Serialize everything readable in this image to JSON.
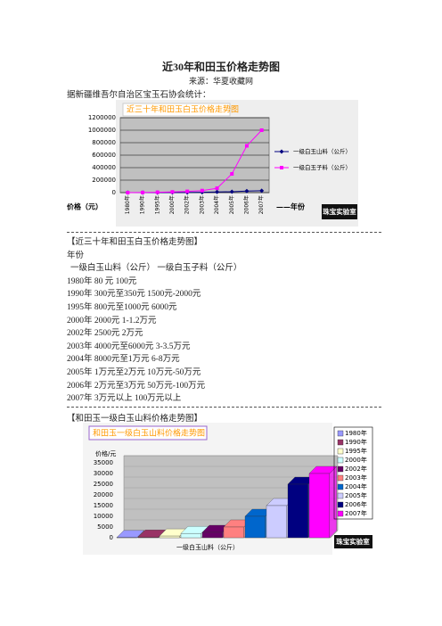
{
  "header": {
    "title": "近30年和田玉价格走势图",
    "source": "来源：华夏收藏网",
    "intro": "据新疆维吾尔自治区宝玉石协会统计："
  },
  "chart_data": [
    {
      "type": "line",
      "title": "近三十年和田玉白玉价格走势图",
      "y_label": "价格（元）",
      "x_label": "——年份",
      "watermark": "珠宝实验室",
      "categories": [
        "1980年",
        "1990年",
        "1995年",
        "2000年",
        "2002年",
        "2003年",
        "2004年",
        "2005年",
        "2006年",
        "2007年"
      ],
      "series": [
        {
          "name": "一级白玉山料（公斤）",
          "color": "#000080",
          "marker": "diamond",
          "values": [
            80,
            300,
            800,
            2000,
            2500,
            5000,
            10000,
            15000,
            25000,
            30000
          ]
        },
        {
          "name": "一级白玉子料（公斤）",
          "color": "#ff00ff",
          "marker": "square",
          "values": [
            100,
            1750,
            6000,
            11000,
            20000,
            32500,
            70000,
            300000,
            750000,
            1000000
          ]
        }
      ],
      "ylim": [
        0,
        1200000
      ],
      "yticks": [
        0,
        200000,
        400000,
        600000,
        800000,
        1000000,
        1200000
      ],
      "grid": true
    },
    {
      "type": "bar",
      "title": "和田玉一级白玉山料价格走势图",
      "y_label": "价格/元",
      "x_label": "一级白玉山料（公斤）",
      "watermark": "珠宝实验室",
      "categories": [
        "1980年",
        "1990年",
        "1995年",
        "2000年",
        "2002年",
        "2003年",
        "2004年",
        "2005年",
        "2006年",
        "2007年"
      ],
      "values": [
        80,
        300,
        800,
        2000,
        2500,
        5000,
        10000,
        15000,
        25000,
        30000
      ],
      "colors": [
        "#9999ff",
        "#993366",
        "#ffffcc",
        "#ccffff",
        "#660066",
        "#ff8080",
        "#0066cc",
        "#ccccff",
        "#000080",
        "#ff00ff"
      ],
      "ylim": [
        0,
        35000
      ],
      "yticks": [
        0,
        5000,
        10000,
        15000,
        20000,
        25000,
        30000,
        35000
      ],
      "grid": true
    }
  ],
  "text_block": {
    "heading": "【近三十年和田玉白玉价格走势图】",
    "lines": [
      "年份",
      "一级白玉山料（公斤） 一级白玉子料（公斤）",
      "1980年 80 元 100元",
      "1990年 300元至350元 1500元-2000元",
      "1995年 800元至1000元 6000元",
      "2000年 2000元 1-1.2万元",
      "2002年 2500元 2万元",
      "2003年 4000元至6000元 3-3.5万元",
      "2004年 8000元至1万元 6-8万元",
      "2005年 1万元至2万元 10万元-50万元",
      "2006年 2万元至3万元 50万元-100万元",
      "2007年 3万元以上 100万元以上"
    ]
  },
  "section2_heading": "【和田玉一级白玉山料价格走势图】"
}
